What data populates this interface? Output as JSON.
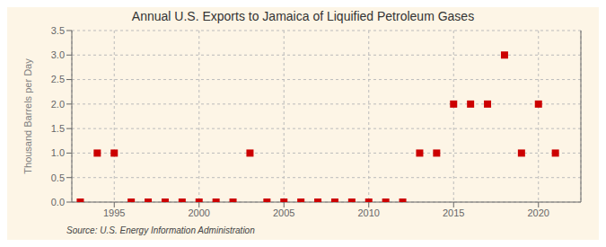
{
  "chart_data": {
    "type": "scatter",
    "title": "Annual U.S. Exports to Jamaica of Liquified Petroleum Gases",
    "ylabel": "Thousand Barrels per Day",
    "annotations": [
      "Source: U.S. Energy Information Administration"
    ],
    "x": [
      1993,
      1994,
      1995,
      1996,
      1997,
      1998,
      1999,
      2000,
      2001,
      2002,
      2003,
      2004,
      2005,
      2006,
      2007,
      2008,
      2009,
      2010,
      2011,
      2012,
      2013,
      2014,
      2015,
      2016,
      2017,
      2018,
      2019,
      2020,
      2021
    ],
    "values": [
      0,
      1.0,
      1.0,
      0,
      0,
      0,
      0,
      0,
      0,
      0,
      1.0,
      0,
      0,
      0,
      0,
      0,
      0,
      0,
      0,
      0,
      1.0,
      1.0,
      2.0,
      2.0,
      2.0,
      3.0,
      1.0,
      2.0,
      1.0
    ],
    "color": "#cc0000",
    "marker": "square",
    "xlim": [
      1992.5,
      2022.5
    ],
    "xticks": [
      1995,
      2000,
      2005,
      2010,
      2015,
      2020
    ],
    "ylim": [
      0,
      3.5
    ],
    "yticks": [
      {
        "value": 0.0,
        "label": "0.0"
      },
      {
        "value": 0.5,
        "label": "0.5"
      },
      {
        "value": 1.0,
        "label": "1.0"
      },
      {
        "value": 1.5,
        "label": "1.5"
      },
      {
        "value": 2.0,
        "label": "2.0"
      },
      {
        "value": 2.5,
        "label": "2.5"
      },
      {
        "value": 3.0,
        "label": "3.0"
      },
      {
        "value": 3.5,
        "label": "3.5"
      }
    ],
    "grid": true
  }
}
